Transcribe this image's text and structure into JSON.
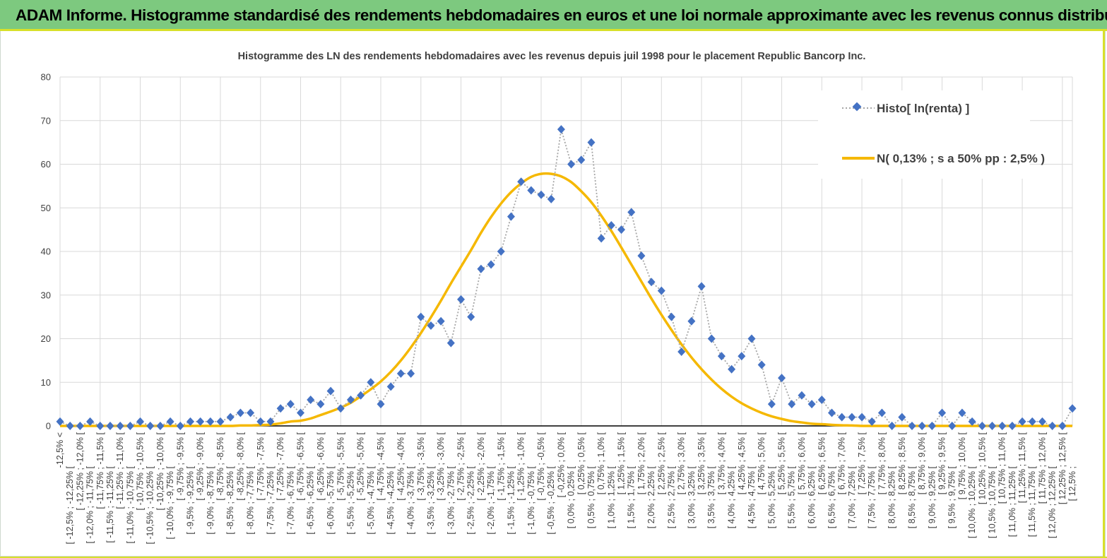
{
  "banner": {
    "title": "ADAM Informe. Histogramme standardisé des rendements hebdomadaires en euros et une loi normale approximante avec les revenus connus distribués"
  },
  "colors": {
    "banner_bg": "#7dc97f",
    "accent": "#d8e02a",
    "series_marker": "#4472c4",
    "series_line": "#a6a6a6",
    "normal_curve": "#f5b800"
  },
  "chart_data": {
    "type": "line",
    "title": "Histogramme des LN des rendements hebdomadaires avec les revenus depuis juil 1998 pour le placement Republic Bancorp Inc.",
    "xlabel": "",
    "ylabel": "",
    "ylim": [
      0,
      80
    ],
    "yticks": [
      0,
      10,
      20,
      30,
      40,
      50,
      60,
      70,
      80
    ],
    "grid": true,
    "legend_position": "top-right",
    "categories": [
      "-12,5% <",
      "[ -12,5% ; -12,25% [",
      "[ -12,25% ; -12,0% [",
      "[ -12,0% ; -11,75% [",
      "[ -11,75% ; -11,5% [",
      "[ -11,5% ; -11,25% [",
      "[ -11,25% ; -11,0% [",
      "[ -11,0% ; -10,75% [",
      "[ -10,75% ; -10,5% [",
      "[ -10,5% ; -10,25% [",
      "[ -10,25% ; -10,0% [",
      "[ -10,0% ; -9,75% [",
      "[ -9,75% ; -9,5% [",
      "[ -9,5% ; -9,25% [",
      "[ -9,25% ; -9,0% [",
      "[ -9,0% ; -8,75% [",
      "[ -8,75% ; -8,5% [",
      "[ -8,5% ; -8,25% [",
      "[ -8,25% ; -8,0% [",
      "[ -8,0% ; -7,75% [",
      "[ -7,75% ; -7,5% [",
      "[ -7,5% ; -7,25% [",
      "[ -7,25% ; -7,0% [",
      "[ -7,0% ; -6,75% [",
      "[ -6,75% ; -6,5% [",
      "[ -6,5% ; -6,25% [",
      "[ -6,25% ; -6,0% [",
      "[ -6,0% ; -5,75% [",
      "[ -5,75% ; -5,5% [",
      "[ -5,5% ; -5,25% [",
      "[ -5,25% ; -5,0% [",
      "[ -5,0% ; -4,75% [",
      "[ -4,75% ; -4,5% [",
      "[ -4,5% ; -4,25% [",
      "[ -4,25% ; -4,0% [",
      "[ -4,0% ; -3,75% [",
      "[ -3,75% ; -3,5% [",
      "[ -3,5% ; -3,25% [",
      "[ -3,25% ; -3,0% [",
      "[ -3,0% ; -2,75% [",
      "[ -2,75% ; -2,5% [",
      "[ -2,5% ; -2,25% [",
      "[ -2,25% ; -2,0% [",
      "[ -2,0% ; -1,75% [",
      "[ -1,75% ; -1,5% [",
      "[ -1,5% ; -1,25% [",
      "[ -1,25% ; -1,0% [",
      "[ -1,0% ; -0,75% [",
      "[ -0,75% ; -0,5% [",
      "[ -0,5% ; -0,25% [",
      "[ -0,25% ; 0,0% [",
      "[ 0,0% ; 0,25% [",
      "[ 0,25% ; 0,5% [",
      "[ 0,5% ; 0,75% [",
      "[ 0,75% ; 1,0% [",
      "[ 1,0% ; 1,25% [",
      "[ 1,25% ; 1,5% [",
      "[ 1,5% ; 1,75% [",
      "[ 1,75% ; 2,0% [",
      "[ 2,0% ; 2,25% [",
      "[ 2,25% ; 2,5% [",
      "[ 2,5% ; 2,75% [",
      "[ 2,75% ; 3,0% [",
      "[ 3,0% ; 3,25% [",
      "[ 3,25% ; 3,5% [",
      "[ 3,5% ; 3,75% [",
      "[ 3,75% ; 4,0% [",
      "[ 4,0% ; 4,25% [",
      "[ 4,25% ; 4,5% [",
      "[ 4,5% ; 4,75% [",
      "[ 4,75% ; 5,0% [",
      "[ 5,0% ; 5,25% [",
      "[ 5,25% ; 5,5% [",
      "[ 5,5% ; 5,75% [",
      "[ 5,75% ; 6,0% [",
      "[ 6,0% ; 6,25% [",
      "[ 6,25% ; 6,5% [",
      "[ 6,5% ; 6,75% [",
      "[ 6,75% ; 7,0% [",
      "[ 7,0% ; 7,25% [",
      "[ 7,25% ; 7,5% [",
      "[ 7,5% ; 7,75% [",
      "[ 7,75% ; 8,0% [",
      "[ 8,0% ; 8,25% [",
      "[ 8,25% ; 8,5% [",
      "[ 8,5% ; 8,75% [",
      "[ 8,75% ; 9,0% [",
      "[ 9,0% ; 9,25% [",
      "[ 9,25% ; 9,5% [",
      "[ 9,5% ; 9,75% [",
      "[ 9,75% ; 10,0% [",
      "[ 10,0% ; 10,25% [",
      "[ 10,25% ; 10,5% [",
      "[ 10,5% ; 10,75% [",
      "[ 10,75% ; 11,0% [",
      "[ 11,0% ; 11,25% [",
      "[ 11,25% ; 11,5% [",
      "[ 11,5% ; 11,75% [",
      "[ 11,75% ; 12,0% [",
      "[ 12,0% ; 12,25% [",
      "[ 12,25% ; 12,5% [",
      "[ 12,5% ;"
    ],
    "series": [
      {
        "name": "Histo[ ln(renta) ]",
        "style": "dotted line with diamond markers",
        "values": [
          1,
          0,
          0,
          1,
          0,
          0,
          0,
          0,
          1,
          0,
          0,
          1,
          0,
          1,
          1,
          1,
          1,
          2,
          3,
          3,
          1,
          1,
          4,
          5,
          3,
          6,
          5,
          8,
          4,
          6,
          7,
          10,
          5,
          9,
          12,
          12,
          25,
          23,
          24,
          19,
          29,
          25,
          36,
          37,
          40,
          48,
          56,
          54,
          53,
          52,
          68,
          60,
          61,
          65,
          43,
          46,
          45,
          49,
          39,
          33,
          31,
          25,
          17,
          24,
          32,
          20,
          16,
          13,
          16,
          20,
          14,
          5,
          11,
          5,
          7,
          5,
          6,
          3,
          2,
          2,
          2,
          1,
          3,
          0,
          2,
          0,
          0,
          0,
          3,
          0,
          3,
          1,
          0,
          0,
          0,
          0,
          1,
          1,
          1,
          0,
          0,
          4
        ]
      },
      {
        "name": "N( 0,13% ; s a 50% pp : 2,5% )",
        "style": "solid line",
        "values": [
          0,
          0,
          0,
          0,
          0,
          0,
          0,
          0,
          0,
          0,
          0,
          0,
          0,
          0,
          0,
          0,
          0,
          0,
          0.1,
          0.1,
          0.2,
          0.3,
          0.6,
          1.0,
          1.2,
          1.7,
          2.5,
          3.3,
          4.2,
          5.3,
          6.8,
          8.4,
          10.2,
          12.4,
          15.0,
          18.0,
          21.3,
          24.9,
          28.7,
          32.7,
          36.5,
          40.3,
          44.3,
          47.9,
          51.0,
          53.6,
          55.6,
          57.1,
          57.8,
          57.8,
          57.2,
          55.9,
          53.8,
          51.3,
          48.2,
          44.7,
          40.9,
          37.0,
          33.1,
          29.2,
          25.5,
          22.0,
          18.7,
          15.7,
          13.0,
          10.6,
          8.5,
          6.7,
          5.2,
          4.0,
          3.0,
          2.2,
          1.6,
          1.1,
          0.8,
          0.5,
          0.4,
          0.25,
          0.15,
          0.1,
          0,
          0,
          0,
          0,
          0,
          0,
          0,
          0,
          0,
          0,
          0,
          0,
          0,
          0,
          0,
          0,
          0,
          0,
          0,
          0,
          0,
          0
        ]
      }
    ]
  }
}
